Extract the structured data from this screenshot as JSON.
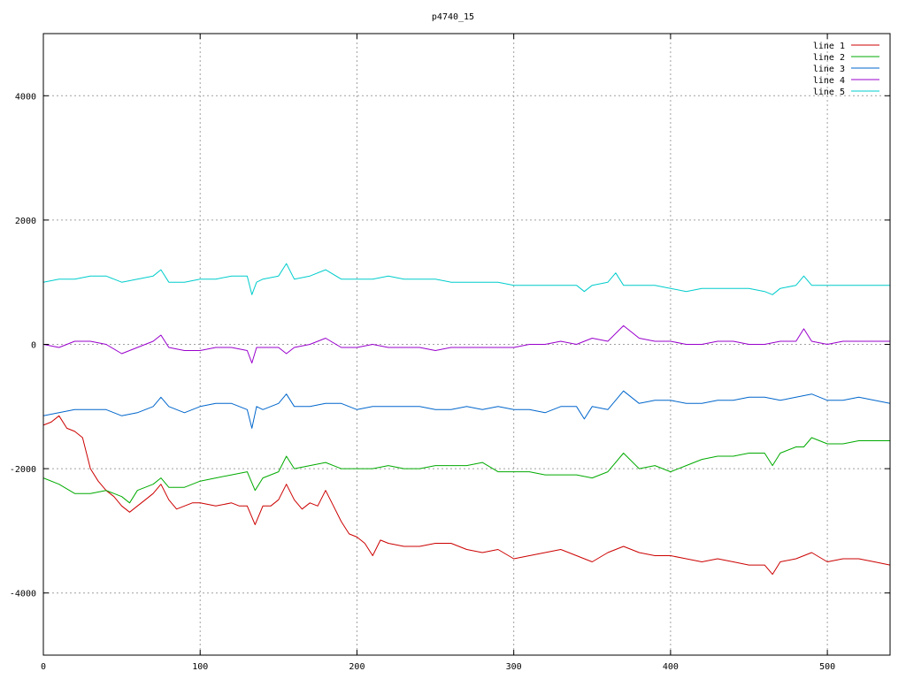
{
  "chart_data": {
    "type": "line",
    "title": "p4740_15",
    "xlabel": "",
    "ylabel": "",
    "xlim": [
      0,
      540
    ],
    "ylim": [
      -5000,
      5000
    ],
    "xticks": [
      0,
      100,
      200,
      300,
      400,
      500
    ],
    "yticks": [
      -4000,
      -2000,
      0,
      2000,
      4000
    ],
    "grid": true,
    "legend_position": "top-right",
    "series": [
      {
        "name": "line 1",
        "color": "#cc0000",
        "x": [
          0,
          5,
          10,
          15,
          20,
          25,
          30,
          35,
          40,
          45,
          50,
          55,
          60,
          65,
          70,
          75,
          80,
          85,
          90,
          95,
          100,
          110,
          120,
          125,
          130,
          135,
          140,
          145,
          150,
          155,
          160,
          165,
          170,
          175,
          180,
          185,
          190,
          195,
          200,
          205,
          210,
          215,
          220,
          230,
          240,
          250,
          260,
          270,
          280,
          290,
          300,
          310,
          320,
          330,
          340,
          350,
          360,
          370,
          380,
          390,
          400,
          410,
          420,
          430,
          440,
          450,
          460,
          465,
          470,
          480,
          490,
          500,
          510,
          520,
          530,
          540
        ],
        "y": [
          -1300,
          -1250,
          -1150,
          -1350,
          -1400,
          -1500,
          -2000,
          -2200,
          -2350,
          -2450,
          -2600,
          -2700,
          -2600,
          -2500,
          -2400,
          -2250,
          -2500,
          -2650,
          -2600,
          -2550,
          -2550,
          -2600,
          -2550,
          -2600,
          -2600,
          -2900,
          -2600,
          -2600,
          -2500,
          -2250,
          -2500,
          -2650,
          -2550,
          -2600,
          -2350,
          -2600,
          -2850,
          -3050,
          -3100,
          -3200,
          -3400,
          -3150,
          -3200,
          -3250,
          -3250,
          -3200,
          -3200,
          -3300,
          -3350,
          -3300,
          -3450,
          -3400,
          -3350,
          -3300,
          -3400,
          -3500,
          -3350,
          -3250,
          -3350,
          -3400,
          -3400,
          -3450,
          -3500,
          -3450,
          -3500,
          -3550,
          -3550,
          -3700,
          -3500,
          -3450,
          -3350,
          -3500,
          -3450,
          -3450,
          -3500,
          -3550
        ]
      },
      {
        "name": "line 2",
        "color": "#00aa00",
        "x": [
          0,
          10,
          20,
          30,
          40,
          50,
          55,
          60,
          70,
          75,
          80,
          90,
          100,
          110,
          120,
          130,
          135,
          140,
          150,
          155,
          160,
          170,
          180,
          190,
          200,
          210,
          220,
          230,
          240,
          250,
          260,
          270,
          280,
          290,
          300,
          310,
          320,
          330,
          340,
          350,
          360,
          370,
          380,
          390,
          400,
          410,
          420,
          430,
          440,
          450,
          460,
          465,
          470,
          480,
          485,
          490,
          500,
          510,
          520,
          530,
          540
        ],
        "y": [
          -2150,
          -2250,
          -2400,
          -2400,
          -2350,
          -2450,
          -2550,
          -2350,
          -2250,
          -2150,
          -2300,
          -2300,
          -2200,
          -2150,
          -2100,
          -2050,
          -2350,
          -2150,
          -2050,
          -1800,
          -2000,
          -1950,
          -1900,
          -2000,
          -2000,
          -2000,
          -1950,
          -2000,
          -2000,
          -1950,
          -1950,
          -1950,
          -1900,
          -2050,
          -2050,
          -2050,
          -2100,
          -2100,
          -2100,
          -2150,
          -2050,
          -1750,
          -2000,
          -1950,
          -2050,
          -1950,
          -1850,
          -1800,
          -1800,
          -1750,
          -1750,
          -1950,
          -1750,
          -1650,
          -1650,
          -1500,
          -1600,
          -1600,
          -1550,
          -1550,
          -1550
        ]
      },
      {
        "name": "line 3",
        "color": "#0066cc",
        "x": [
          0,
          10,
          20,
          30,
          40,
          50,
          60,
          70,
          75,
          80,
          90,
          100,
          110,
          120,
          130,
          133,
          136,
          140,
          150,
          155,
          160,
          170,
          180,
          190,
          200,
          210,
          220,
          230,
          240,
          250,
          260,
          270,
          280,
          290,
          300,
          310,
          320,
          330,
          340,
          345,
          350,
          360,
          370,
          380,
          390,
          400,
          410,
          420,
          430,
          440,
          450,
          460,
          470,
          480,
          490,
          500,
          510,
          520,
          530,
          540
        ],
        "y": [
          -1150,
          -1100,
          -1050,
          -1050,
          -1050,
          -1150,
          -1100,
          -1000,
          -850,
          -1000,
          -1100,
          -1000,
          -950,
          -950,
          -1050,
          -1350,
          -1000,
          -1050,
          -950,
          -800,
          -1000,
          -1000,
          -950,
          -950,
          -1050,
          -1000,
          -1000,
          -1000,
          -1000,
          -1050,
          -1050,
          -1000,
          -1050,
          -1000,
          -1050,
          -1050,
          -1100,
          -1000,
          -1000,
          -1200,
          -1000,
          -1050,
          -750,
          -950,
          -900,
          -900,
          -950,
          -950,
          -900,
          -900,
          -850,
          -850,
          -900,
          -850,
          -800,
          -900,
          -900,
          -850,
          -900,
          -950
        ]
      },
      {
        "name": "line 4",
        "color": "#9900cc",
        "x": [
          0,
          10,
          20,
          30,
          40,
          50,
          60,
          70,
          75,
          80,
          90,
          100,
          110,
          120,
          130,
          133,
          136,
          140,
          150,
          155,
          160,
          170,
          180,
          190,
          200,
          210,
          220,
          230,
          240,
          250,
          260,
          270,
          280,
          290,
          300,
          310,
          320,
          330,
          340,
          350,
          360,
          370,
          380,
          390,
          400,
          410,
          420,
          430,
          440,
          450,
          460,
          470,
          480,
          485,
          490,
          500,
          510,
          520,
          530,
          540
        ],
        "y": [
          0,
          -50,
          50,
          50,
          0,
          -150,
          -50,
          50,
          150,
          -50,
          -100,
          -100,
          -50,
          -50,
          -100,
          -300,
          -50,
          -50,
          -50,
          -150,
          -50,
          0,
          100,
          -50,
          -50,
          0,
          -50,
          -50,
          -50,
          -100,
          -50,
          -50,
          -50,
          -50,
          -50,
          0,
          0,
          50,
          0,
          100,
          50,
          300,
          100,
          50,
          50,
          0,
          0,
          50,
          50,
          0,
          0,
          50,
          50,
          250,
          50,
          0,
          50,
          50,
          50,
          50
        ]
      },
      {
        "name": "line 5",
        "color": "#00cccc",
        "x": [
          0,
          10,
          20,
          30,
          40,
          50,
          60,
          70,
          75,
          80,
          90,
          100,
          110,
          120,
          130,
          133,
          136,
          140,
          150,
          155,
          160,
          170,
          180,
          190,
          200,
          210,
          220,
          230,
          240,
          250,
          260,
          270,
          280,
          290,
          300,
          310,
          320,
          330,
          340,
          345,
          350,
          360,
          365,
          370,
          380,
          390,
          400,
          410,
          420,
          430,
          440,
          450,
          460,
          465,
          470,
          480,
          485,
          490,
          500,
          510,
          520,
          530,
          540
        ],
        "y": [
          1000,
          1050,
          1050,
          1100,
          1100,
          1000,
          1050,
          1100,
          1200,
          1000,
          1000,
          1050,
          1050,
          1100,
          1100,
          800,
          1000,
          1050,
          1100,
          1300,
          1050,
          1100,
          1200,
          1050,
          1050,
          1050,
          1100,
          1050,
          1050,
          1050,
          1000,
          1000,
          1000,
          1000,
          950,
          950,
          950,
          950,
          950,
          850,
          950,
          1000,
          1150,
          950,
          950,
          950,
          900,
          850,
          900,
          900,
          900,
          900,
          850,
          800,
          900,
          950,
          1100,
          950,
          950,
          950,
          950,
          950,
          950
        ]
      }
    ]
  }
}
